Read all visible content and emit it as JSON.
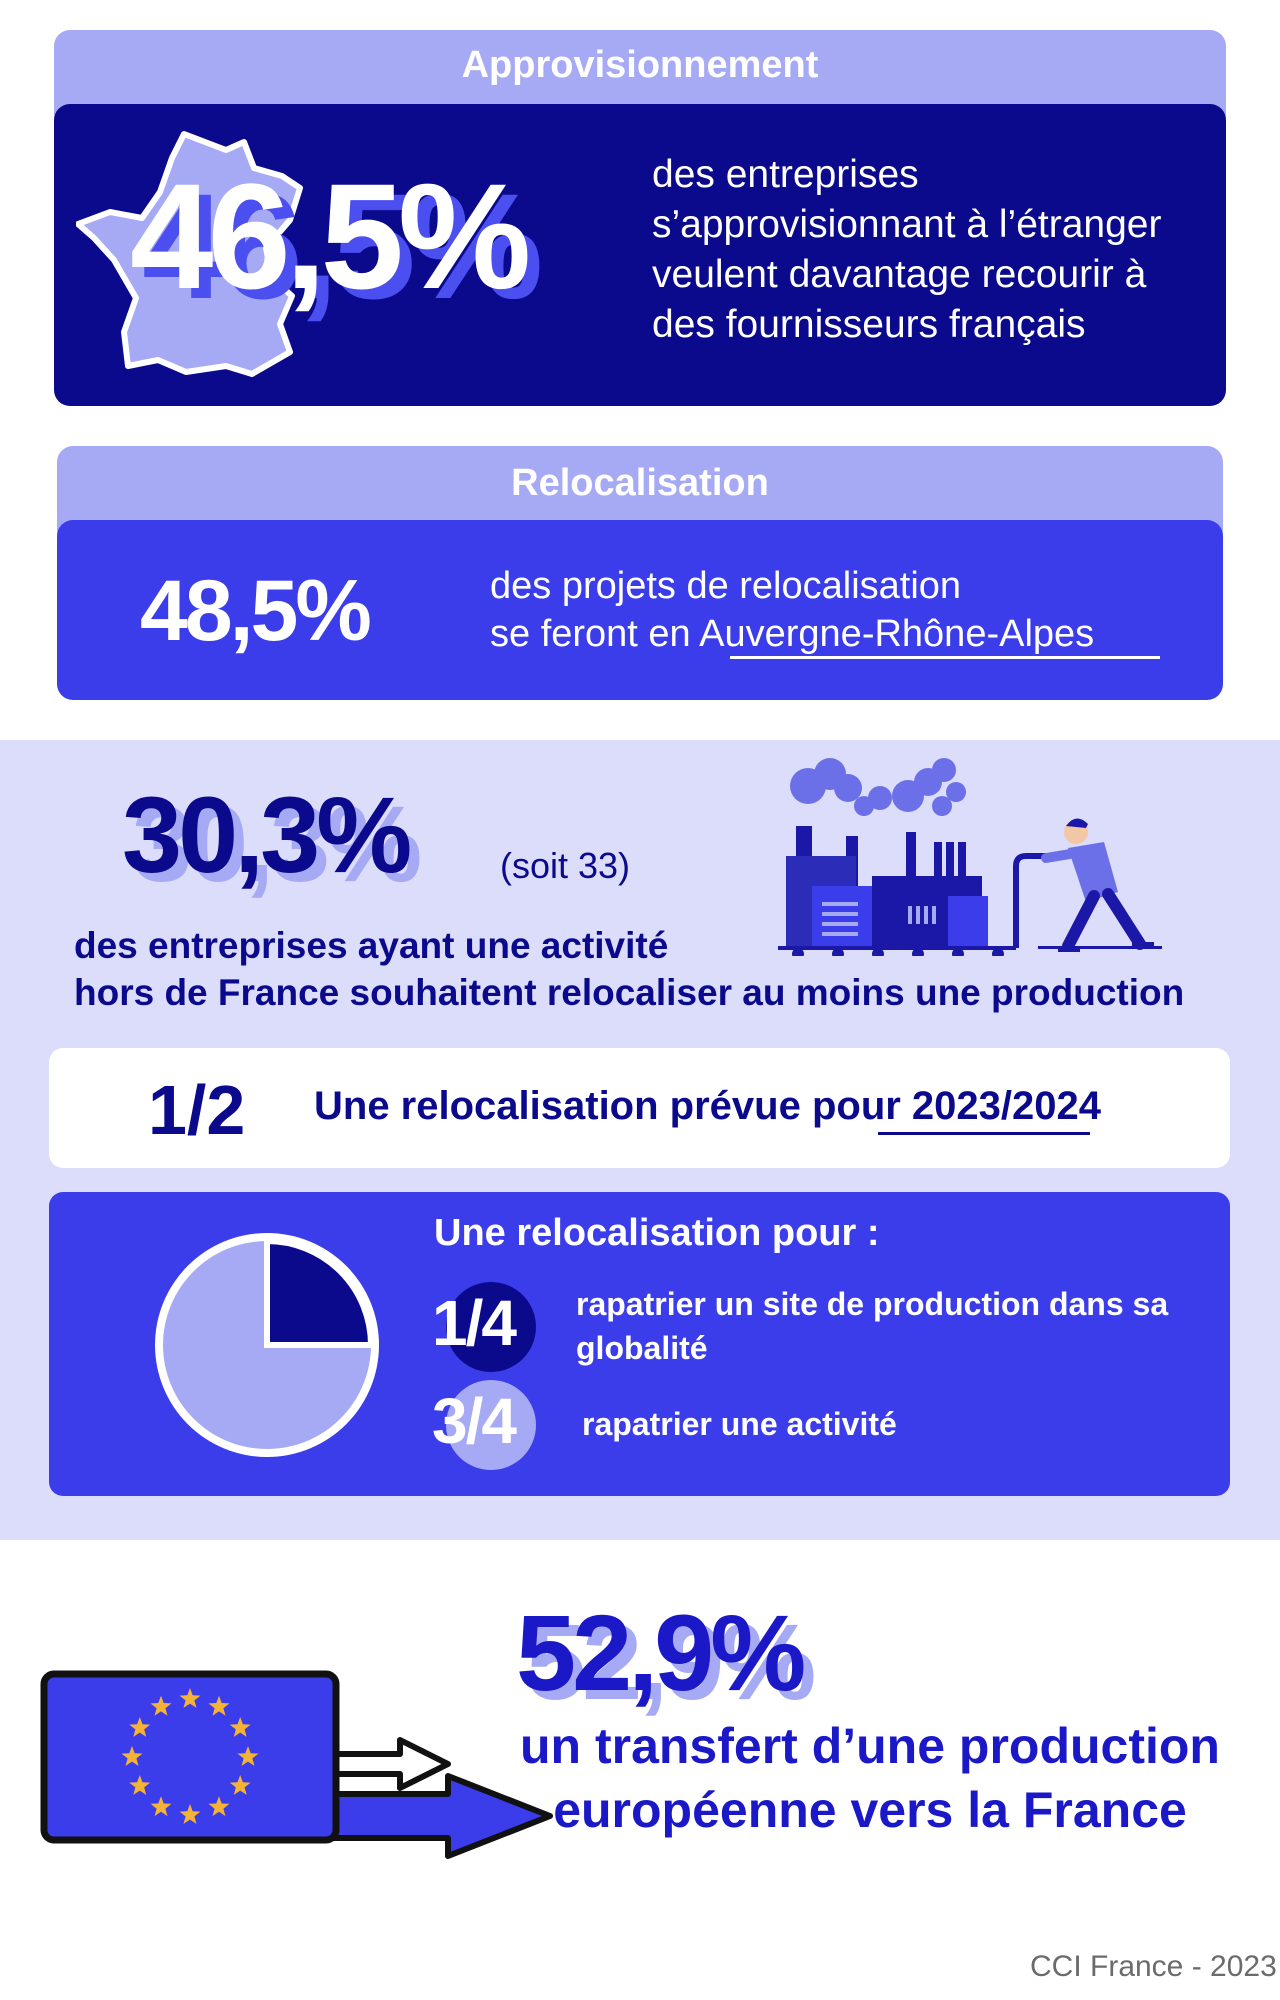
{
  "approvisionnement": {
    "title": "Approvisionnement",
    "value": "46,5%",
    "text": "des entreprises s’approvisionnant à l’étranger veulent davantage recourir à des fournisseurs français"
  },
  "relocalisation": {
    "title": "Relocalisation",
    "value": "48,5%",
    "line1": "des projets de relocalisation",
    "line2": "se feront en Auvergne-Rhône-Alpes"
  },
  "relocaliser": {
    "value": "30,3%",
    "note": "(soit 33)",
    "line1": "des entreprises ayant une activité",
    "line2": "hors de France souhaitent relocaliser au moins une production"
  },
  "prevue": {
    "fraction": "1/2",
    "text": "Une relocalisation prévue pour 2023/2024"
  },
  "pour": {
    "title": "Une relocalisation pour :",
    "quarter_fraction": "1/4",
    "quarter_text": "rapatrier un site de production dans sa globalité",
    "three_quarter_fraction": "3/4",
    "three_quarter_text": "rapatrier une activité",
    "share_site": 0.25,
    "share_activity": 0.75
  },
  "transfert": {
    "value": "52,9%",
    "line1": "un transfert  d’une production",
    "line2": "européenne vers la France"
  },
  "credit": "CCI France - 2023",
  "colors": {
    "navy": "#0b0a8c",
    "blue": "#3b3deb",
    "lavender": "#a6aaf5",
    "band": "#dcdcfb"
  }
}
